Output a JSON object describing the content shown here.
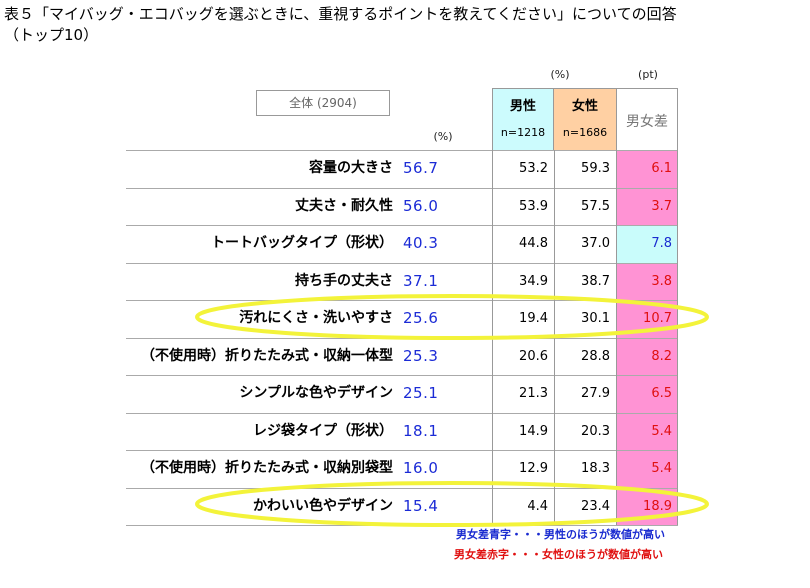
{
  "title": "表５「マイバッグ・エコバッグを選ぶときに、重視するポイントを教えてください」についての回答\n（トップ10）",
  "total_label": "全体 (2904)",
  "unit_pct_left": "(%)",
  "unit_pct_top": "(%)",
  "unit_pt": "(pt)",
  "headers": {
    "male": "男性",
    "male_n": "n=1218",
    "female": "女性",
    "female_n": "n=1686",
    "diff": "男女差"
  },
  "colors": {
    "male_header": "#ccfbfd",
    "female_header": "#ffd0a3",
    "diff_red": "#ff93d4",
    "diff_blue": "#c9fcfb",
    "highlight": "#f5f542"
  },
  "rows": [
    {
      "label": "容量の大きさ",
      "total": "56.7",
      "male": "53.2",
      "female": "59.3",
      "diff": "6.1",
      "diff_color": "red"
    },
    {
      "label": "丈夫さ・耐久性",
      "total": "56.0",
      "male": "53.9",
      "female": "57.5",
      "diff": "3.7",
      "diff_color": "red"
    },
    {
      "label": "トートバッグタイプ（形状）",
      "total": "40.3",
      "male": "44.8",
      "female": "37.0",
      "diff": "7.8",
      "diff_color": "blue"
    },
    {
      "label": "持ち手の丈夫さ",
      "total": "37.1",
      "male": "34.9",
      "female": "38.7",
      "diff": "3.8",
      "diff_color": "red"
    },
    {
      "label": "汚れにくさ・洗いやすさ",
      "total": "25.6",
      "male": "19.4",
      "female": "30.1",
      "diff": "10.7",
      "diff_color": "red"
    },
    {
      "label": "（不使用時）折りたたみ式・収納一体型",
      "total": "25.3",
      "male": "20.6",
      "female": "28.8",
      "diff": "8.2",
      "diff_color": "red"
    },
    {
      "label": "シンプルな色やデザイン",
      "total": "25.1",
      "male": "21.3",
      "female": "27.9",
      "diff": "6.5",
      "diff_color": "red"
    },
    {
      "label": "レジ袋タイプ（形状）",
      "total": "18.1",
      "male": "14.9",
      "female": "20.3",
      "diff": "5.4",
      "diff_color": "red"
    },
    {
      "label": "（不使用時）折りたたみ式・収納別袋型",
      "total": "16.0",
      "male": "12.9",
      "female": "18.3",
      "diff": "5.4",
      "diff_color": "red"
    },
    {
      "label": "かわいい色やデザイン",
      "total": "15.4",
      "male": "4.4",
      "female": "23.4",
      "diff": "18.9",
      "diff_color": "red"
    }
  ],
  "highlighted_rows": [
    4,
    9
  ],
  "notes": {
    "blue": "男女差青字・・・男性のほうが数値が高い",
    "red": "男女差赤字・・・女性のほうが数値が高い"
  },
  "chart_data": {
    "type": "table",
    "title": "表５「マイバッグ・エコバッグを選ぶときに、重視するポイントを教えてください」についての回答（トップ10）",
    "columns": [
      "全体 (2904)",
      "男性 n=1218",
      "女性 n=1686",
      "男女差"
    ],
    "units": [
      "%",
      "%",
      "%",
      "pt"
    ],
    "categories": [
      "容量の大きさ",
      "丈夫さ・耐久性",
      "トートバッグタイプ（形状）",
      "持ち手の丈夫さ",
      "汚れにくさ・洗いやすさ",
      "（不使用時）折りたたみ式・収納一体型",
      "シンプルな色やデザイン",
      "レジ袋タイプ（形状）",
      "（不使用時）折りたたみ式・収納別袋型",
      "かわいい色やデザイン"
    ],
    "series": [
      {
        "name": "全体 (2904)",
        "values": [
          56.7,
          56.0,
          40.3,
          37.1,
          25.6,
          25.3,
          25.1,
          18.1,
          16.0,
          15.4
        ]
      },
      {
        "name": "男性",
        "values": [
          53.2,
          53.9,
          44.8,
          34.9,
          19.4,
          20.6,
          21.3,
          14.9,
          12.9,
          4.4
        ]
      },
      {
        "name": "女性",
        "values": [
          59.3,
          57.5,
          37.0,
          38.7,
          30.1,
          28.8,
          27.9,
          20.3,
          18.3,
          23.4
        ]
      },
      {
        "name": "男女差",
        "values": [
          6.1,
          3.7,
          7.8,
          3.8,
          10.7,
          8.2,
          6.5,
          5.4,
          5.4,
          18.9
        ]
      }
    ]
  }
}
